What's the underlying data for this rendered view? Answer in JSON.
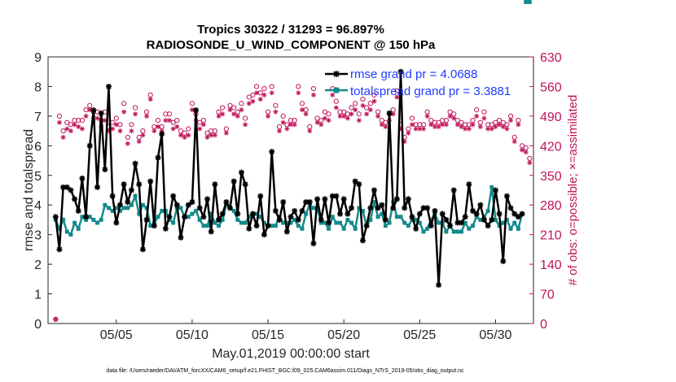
{
  "chart_data": {
    "type": "line",
    "title_line1": "Tropics 30322 / 31293 = 96.897%",
    "title_line2": "RADIOSONDE_U_WIND_COMPONENT @ 150 hPa",
    "xlabel": "May.01,2019 00:00:00 start",
    "ylabel": "rmse and totalspread",
    "ylabel_right": "# of obs: o=possible; ×=assimilated",
    "xlim": [
      0.5,
      32.5
    ],
    "ylim": [
      0,
      9
    ],
    "ylim_right": [
      0,
      630
    ],
    "x_ticks": [
      5,
      10,
      15,
      20,
      25,
      30
    ],
    "x_tick_labels": [
      "05/05",
      "05/10",
      "05/15",
      "05/20",
      "05/25",
      "05/30"
    ],
    "y_ticks": [
      "0",
      "1",
      "2",
      "3",
      "4",
      "5",
      "6",
      "7",
      "8",
      "9"
    ],
    "y_ticks_right": [
      "0",
      "70",
      "140",
      "210",
      "280",
      "350",
      "420",
      "490",
      "560",
      "630"
    ],
    "legend": {
      "rmse": "rmse grand pr = 4.0688",
      "spread": "totalspread grand pr = 3.3881",
      "position": "top-right"
    },
    "colors": {
      "rmse": "#000000",
      "spread": "#148a8a",
      "obs": "#c0145a",
      "legend_text": "#1f3cff"
    },
    "x": [
      1,
      1.25,
      1.5,
      1.75,
      2,
      2.25,
      2.5,
      2.75,
      3,
      3.25,
      3.5,
      3.75,
      4,
      4.25,
      4.5,
      4.75,
      5,
      5.25,
      5.5,
      5.75,
      6,
      6.25,
      6.5,
      6.75,
      7,
      7.25,
      7.5,
      7.75,
      8,
      8.25,
      8.5,
      8.75,
      9,
      9.25,
      9.5,
      9.75,
      10,
      10.25,
      10.5,
      10.75,
      11,
      11.25,
      11.5,
      11.75,
      12,
      12.25,
      12.5,
      12.75,
      13,
      13.25,
      13.5,
      13.75,
      14,
      14.25,
      14.5,
      14.75,
      15,
      15.25,
      15.5,
      15.75,
      16,
      16.25,
      16.5,
      16.75,
      17,
      17.25,
      17.5,
      17.75,
      18,
      18.25,
      18.5,
      18.75,
      19,
      19.25,
      19.5,
      19.75,
      20,
      20.25,
      20.5,
      20.75,
      21,
      21.25,
      21.5,
      21.75,
      22,
      22.25,
      22.5,
      22.75,
      23,
      23.25,
      23.5,
      23.75,
      24,
      24.25,
      24.5,
      24.75,
      25,
      25.25,
      25.5,
      25.75,
      26,
      26.25,
      26.5,
      26.75,
      27,
      27.25,
      27.5,
      27.75,
      28,
      28.25,
      28.5,
      28.75,
      29,
      29.25,
      29.5,
      29.75,
      30,
      30.25,
      30.5,
      30.75,
      31,
      31.25,
      31.5,
      31.75,
      32,
      32.25
    ],
    "rmse": [
      3.6,
      2.5,
      4.6,
      4.6,
      4.5,
      4.2,
      3.8,
      4.9,
      3.6,
      6.0,
      7.2,
      4.6,
      7.1,
      5.2,
      8.0,
      4.3,
      3.4,
      4.0,
      4.7,
      4.1,
      4.5,
      5.4,
      4.7,
      2.5,
      3.5,
      4.8,
      3.3,
      5.6,
      6.4,
      3.2,
      3.6,
      4.3,
      4.0,
      2.9,
      3.6,
      4.0,
      4.1,
      7.2,
      3.9,
      3.6,
      4.2,
      3.1,
      4.7,
      3.5,
      3.7,
      4.1,
      3.9,
      4.8,
      3.7,
      5.1,
      4.7,
      3.2,
      3.7,
      3.3,
      4.3,
      3.0,
      3.3,
      5.8,
      3.8,
      3.5,
      4.1,
      3.1,
      3.6,
      3.8,
      3.5,
      3.8,
      4.1,
      4.1,
      2.7,
      4.2,
      3.5,
      4.2,
      3.4,
      4.3,
      4.3,
      3.7,
      4.2,
      3.7,
      3.9,
      4.8,
      4.7,
      2.8,
      3.3,
      3.9,
      4.5,
      3.9,
      4.0,
      3.5,
      7.1,
      3.9,
      4.2,
      8.5,
      3.9,
      4.2,
      3.6,
      3.2,
      3.7,
      3.9,
      3.9,
      3.3,
      3.8,
      1.3,
      3.7,
      3.5,
      3.3,
      4.5,
      3.4,
      3.4,
      3.6,
      4.7,
      3.8,
      3.7,
      4.0,
      3.5,
      3.3,
      3.5,
      4.5,
      3.7,
      2.1,
      4.3,
      3.9,
      3.7,
      3.6,
      3.7
    ],
    "spread": [
      3.5,
      3.2,
      3.5,
      3.1,
      3.0,
      3.4,
      3.2,
      3.6,
      3.5,
      3.6,
      3.5,
      3.4,
      3.5,
      4.0,
      3.9,
      3.8,
      3.9,
      3.8,
      3.9,
      3.9,
      4.0,
      4.3,
      3.7,
      4.0,
      3.9,
      3.3,
      3.4,
      3.6,
      3.8,
      3.8,
      3.5,
      3.4,
      3.9,
      3.9,
      3.6,
      3.6,
      3.7,
      3.8,
      3.5,
      3.3,
      3.3,
      3.7,
      3.4,
      3.3,
      3.5,
      4.0,
      3.9,
      3.8,
      3.5,
      3.4,
      3.4,
      3.6,
      3.7,
      3.7,
      3.6,
      3.4,
      3.3,
      3.3,
      3.3,
      3.6,
      3.4,
      3.4,
      3.4,
      3.5,
      3.3,
      3.2,
      3.7,
      4.0,
      3.9,
      3.9,
      3.4,
      3.4,
      3.2,
      3.6,
      3.4,
      3.4,
      3.2,
      3.5,
      3.4,
      3.2,
      3.9,
      3.8,
      3.3,
      3.5,
      4.1,
      3.6,
      3.7,
      3.3,
      3.4,
      4.1,
      3.6,
      3.6,
      3.4,
      3.3,
      3.5,
      3.5,
      3.4,
      3.1,
      3.2,
      3.5,
      3.7,
      3.4,
      3.4,
      3.1,
      3.3,
      3.1,
      3.1,
      3.1,
      3.4,
      3.2,
      3.3,
      3.6,
      3.5,
      3.6,
      3.8,
      4.6,
      3.5,
      3.3,
      3.4,
      3.5,
      3.2,
      3.4,
      3.2,
      3.7
    ],
    "obs_possible": [
      10,
      490,
      455,
      475,
      470,
      480,
      480,
      480,
      505,
      515,
      500,
      500,
      480,
      500,
      465,
      475,
      485,
      470,
      520,
      440,
      470,
      510,
      440,
      455,
      500,
      540,
      465,
      480,
      465,
      495,
      495,
      475,
      480,
      455,
      450,
      460,
      520,
      495,
      475,
      480,
      450,
      455,
      455,
      500,
      510,
      460,
      515,
      510,
      500,
      520,
      485,
      535,
      540,
      560,
      545,
      555,
      500,
      560,
      515,
      465,
      490,
      470,
      480,
      480,
      560,
      520,
      505,
      465,
      555,
      485,
      480,
      500,
      495,
      555,
      525,
      500,
      500,
      495,
      510,
      520,
      495,
      530,
      510,
      520,
      540,
      500,
      480,
      475,
      495,
      505,
      550,
      470,
      440,
      460,
      485,
      470,
      470,
      470,
      500,
      480,
      475,
      475,
      480,
      480,
      500,
      495,
      480,
      475,
      470,
      470,
      480,
      505,
      475,
      500,
      470,
      470,
      475,
      480,
      475,
      470,
      490,
      440,
      480,
      420,
      415,
      390
    ],
    "obs_assimilated": [
      10,
      475,
      440,
      460,
      455,
      470,
      465,
      460,
      490,
      505,
      485,
      485,
      465,
      480,
      455,
      460,
      470,
      455,
      500,
      425,
      455,
      495,
      430,
      445,
      490,
      530,
      455,
      465,
      455,
      480,
      480,
      460,
      465,
      445,
      440,
      445,
      505,
      480,
      460,
      470,
      440,
      445,
      445,
      490,
      495,
      450,
      505,
      495,
      490,
      505,
      470,
      520,
      525,
      545,
      530,
      540,
      490,
      545,
      500,
      455,
      475,
      460,
      470,
      470,
      545,
      505,
      495,
      455,
      540,
      475,
      470,
      485,
      480,
      540,
      510,
      490,
      490,
      485,
      495,
      505,
      480,
      515,
      495,
      505,
      525,
      490,
      470,
      465,
      480,
      495,
      535,
      460,
      430,
      450,
      470,
      460,
      460,
      460,
      490,
      470,
      465,
      465,
      470,
      470,
      490,
      485,
      470,
      465,
      460,
      460,
      470,
      490,
      465,
      485,
      460,
      460,
      465,
      470,
      465,
      460,
      480,
      430,
      470,
      410,
      405,
      380
    ]
  },
  "footnote": "data file: /Users/raeder/DAI/ATM_forcXX/CAM6_setup/f.e21.FHIST_BGC.f09_025.CAM6assim.011/Diags_NTrS_2019-05/obs_diag_output.nc"
}
